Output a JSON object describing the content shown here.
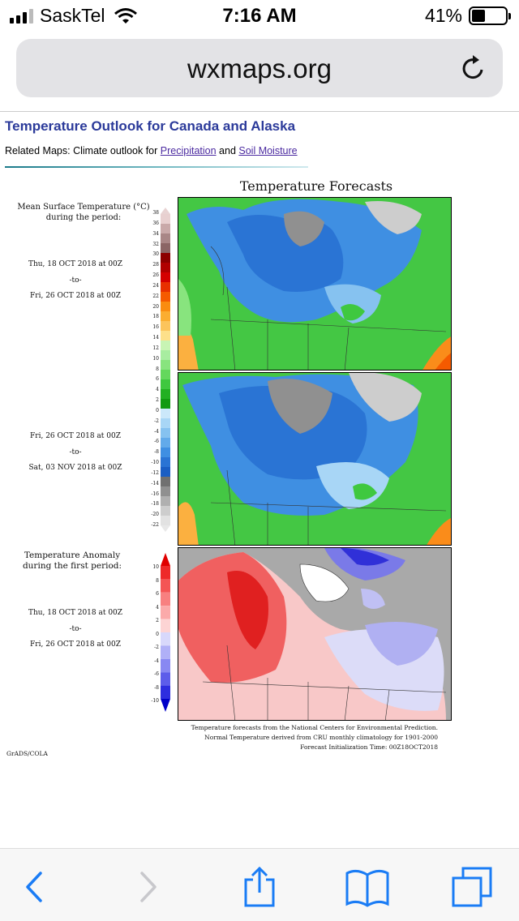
{
  "status": {
    "carrier": "SaskTel",
    "time": "7:16 AM",
    "battery": "41%",
    "battery_level": 0.41
  },
  "browser": {
    "url": "wxmaps.org"
  },
  "page": {
    "title": "Temperature Outlook for Canada and Alaska",
    "related_prefix": "Related Maps: Climate outlook for ",
    "related_link1": "Precipitation",
    "related_mid": " and ",
    "related_link2": "Soil Moisture"
  },
  "figure": {
    "title": "Temperature Forecasts",
    "panel1": {
      "label1": "Mean Surface Temperature (°C)",
      "label2": "during the period:",
      "start": "Thu, 18 OCT 2018 at 00Z",
      "to": "-to-",
      "end": "Fri, 26 OCT 2018 at 00Z"
    },
    "panel2": {
      "start": "Fri, 26 OCT 2018 at 00Z",
      "to": "-to-",
      "end": "Sat, 03 NOV 2018 at 00Z"
    },
    "panel3": {
      "label1": "Temperature Anomaly",
      "label2": "during the first period:",
      "start": "Thu, 18 OCT 2018 at 00Z",
      "to": "-to-",
      "end": "Fri, 26 OCT 2018 at 00Z"
    },
    "temp_ticks": [
      "38",
      "36",
      "34",
      "32",
      "30",
      "28",
      "26",
      "24",
      "22",
      "20",
      "18",
      "16",
      "14",
      "12",
      "10",
      "8",
      "6",
      "4",
      "2",
      "0",
      "-2",
      "-4",
      "-6",
      "-8",
      "-10",
      "-12",
      "-14",
      "-16",
      "-18",
      "-20",
      "-22"
    ],
    "anom_ticks": [
      "10",
      "8",
      "6",
      "4",
      "2",
      "0",
      "-2",
      "-4",
      "-6",
      "-8",
      "-10"
    ],
    "credit1": "Temperature forecasts from the National Centers for Environmental Prediction.",
    "credit2": "Normal Temperature derived from CRU monthly climatology for 1901-2000",
    "credit3": "Forecast Initialization Time: 00Z18OCT2018",
    "software": "GrADS/COLA"
  },
  "toolbar": {
    "back": "chevron-left-icon",
    "forward": "chevron-right-icon",
    "share": "share-icon",
    "bookmarks": "book-icon",
    "tabs": "tabs-icon"
  }
}
